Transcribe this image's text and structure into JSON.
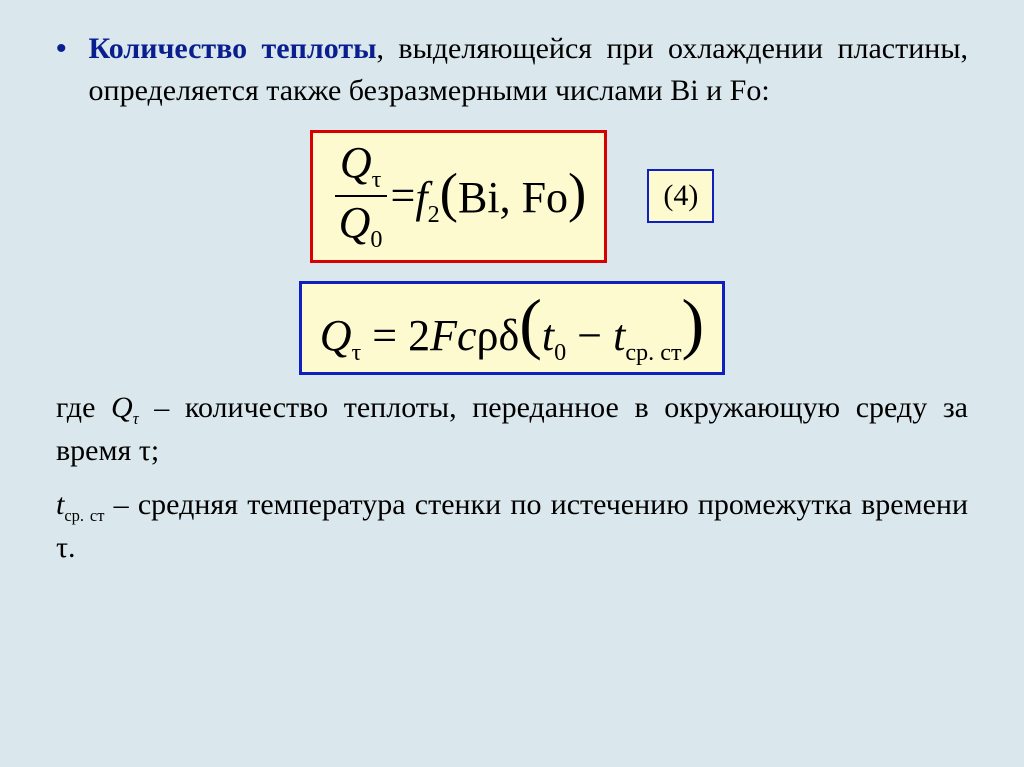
{
  "colors": {
    "slide_bg": "#dae7ec",
    "text": "#000000",
    "keyword": "#0a1f8f",
    "bullet": "#0a1f8f",
    "formula_bg": "#fdfacf",
    "border_red": "#d80000",
    "border_blue": "#1020c0"
  },
  "typography": {
    "body_family": "Times New Roman",
    "body_size_pt": 22,
    "formula_size_pt": 34,
    "formula_style": "italic"
  },
  "intro": {
    "keyword": "Количество теплоты",
    "rest": ", выделяющейся при охлаждении пластины, определяется также безразмерными числами Bi и Fo:"
  },
  "eq1": {
    "border_color": "#d80000",
    "frac_num": "Q",
    "frac_num_sub": "τ",
    "frac_den": "Q",
    "frac_den_sub": "0",
    "eq": " = ",
    "fn": "f",
    "fn_sub": "2",
    "arg": "Bi, Fo",
    "number": "(4)"
  },
  "eq2": {
    "border_color": "#1020c0",
    "lhs": "Q",
    "lhs_sub": "τ",
    "eq": " = ",
    "coef": "2",
    "F": "F",
    "c": "c",
    "rho": "ρ",
    "delta": "δ",
    "t1": "t",
    "t1_sub": "0",
    "minus": " − ",
    "t2": "t",
    "t2_sub": "ср. ст"
  },
  "p1": {
    "lead": "где ",
    "sym": "Q",
    "sym_sub": "τ",
    "dash": " – ",
    "text": "количество теплоты, переданное в окружающую среду за время τ;"
  },
  "p2": {
    "sym": "t",
    "sym_sub": "ср. ст",
    "dash": " – ",
    "text": "средняя температура стенки по истечению промежутка времени τ."
  }
}
